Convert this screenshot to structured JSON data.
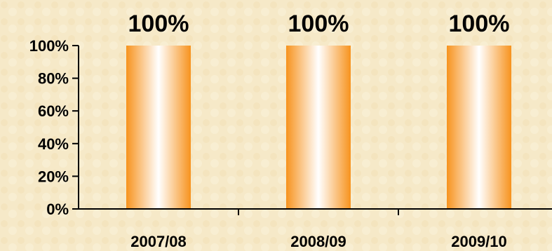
{
  "chart_data": {
    "type": "bar",
    "title": "",
    "xlabel": "",
    "ylabel": "",
    "categories": [
      "2007/08",
      "2008/09",
      "2009/10"
    ],
    "values": [
      100,
      100,
      100
    ],
    "data_labels": [
      "100%",
      "100%",
      "100%"
    ],
    "y_ticks": [
      0,
      20,
      40,
      60,
      80,
      100
    ],
    "y_tick_labels": [
      "0%",
      "20%",
      "40%",
      "60%",
      "80%",
      "100%"
    ],
    "ylim": [
      0,
      100
    ],
    "grid": false,
    "legend": "none",
    "colors": {
      "bar_edge": "#f7931e",
      "bar_center": "#ffffff",
      "background": "#f6e9c8",
      "axis": "#000000"
    }
  }
}
